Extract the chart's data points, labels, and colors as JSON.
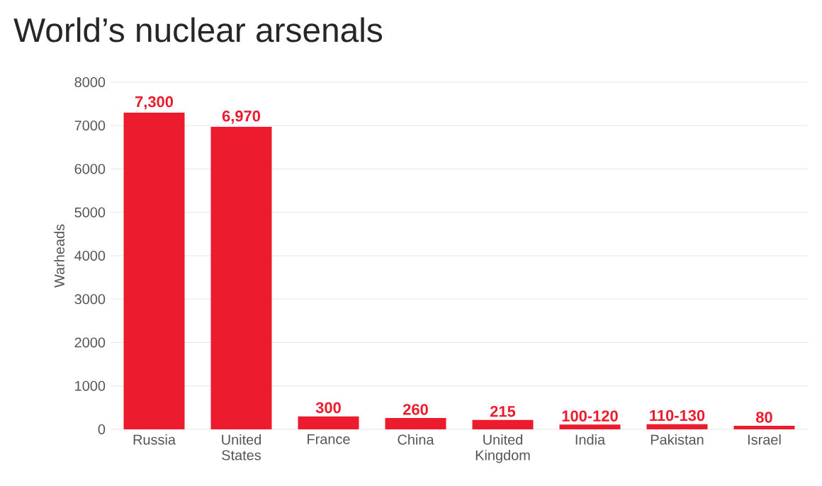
{
  "chart_data": {
    "type": "bar",
    "title": "World’s nuclear arsenals",
    "ylabel": "Warheads",
    "categories": [
      "Russia",
      "United States",
      "France",
      "China",
      "United Kingdom",
      "India",
      "Pakistan",
      "Israel"
    ],
    "values": [
      7300,
      6970,
      300,
      260,
      215,
      110,
      120,
      80
    ],
    "value_labels": [
      "7,300",
      "6,970",
      "300",
      "260",
      "215",
      "100-120",
      "110-130",
      "80"
    ],
    "color": "#ec1c2e",
    "ylim": [
      0,
      8000
    ],
    "yticks": [
      0,
      1000,
      2000,
      3000,
      4000,
      5000,
      6000,
      7000,
      8000
    ],
    "grid": "y"
  }
}
